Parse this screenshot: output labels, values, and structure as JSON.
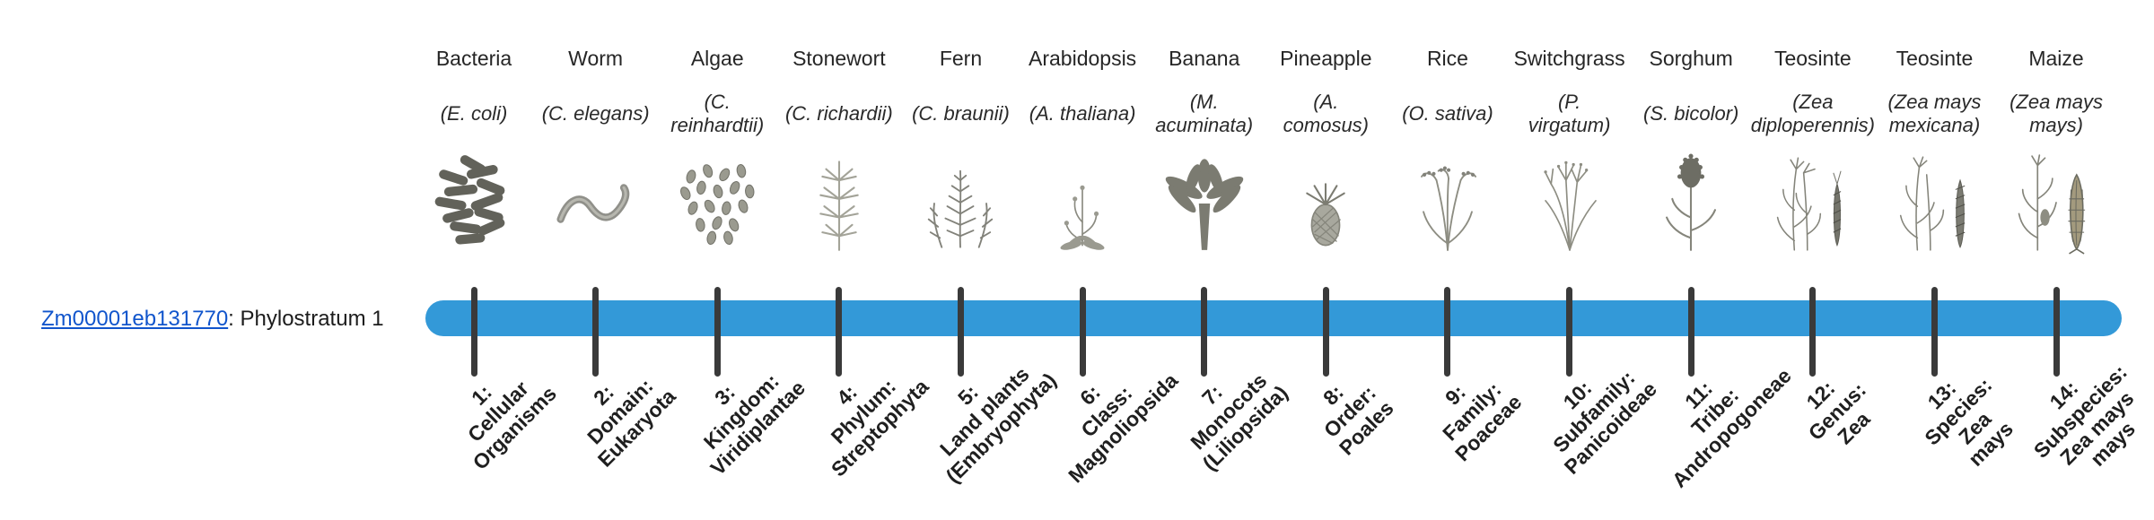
{
  "page": {
    "gene_link": "Zm00001eb131770",
    "gene_suffix": ": Phylostratum 1",
    "link_color": "#1155cc"
  },
  "timeline": {
    "bar_color": "#3399d8",
    "tick_color": "#3a3a3a"
  },
  "organisms": [
    {
      "name": "Bacteria",
      "sci_lines": [
        "(E. coli)"
      ],
      "icon": "bacteria-icon",
      "stratum_lines": [
        "1:",
        "Cellular",
        "Organisms"
      ]
    },
    {
      "name": "Worm",
      "sci_lines": [
        "(C. elegans)"
      ],
      "icon": "worm-icon",
      "stratum_lines": [
        "2:",
        "Domain:",
        "Eukaryota"
      ]
    },
    {
      "name": "Algae",
      "sci_lines": [
        "(C.",
        "reinhardtii)"
      ],
      "icon": "algae-icon",
      "stratum_lines": [
        "3:",
        "Kingdom:",
        "Viridiplantae"
      ]
    },
    {
      "name": "Stonewort",
      "sci_lines": [
        "(C. richardii)"
      ],
      "icon": "stonewort-icon",
      "stratum_lines": [
        "4:",
        "Phylum:",
        "Streptophyta"
      ]
    },
    {
      "name": "Fern",
      "sci_lines": [
        "(C. braunii)"
      ],
      "icon": "fern-icon",
      "stratum_lines": [
        "5:",
        "Land plants",
        "(Embryophyta)"
      ]
    },
    {
      "name": "Arabidopsis",
      "sci_lines": [
        "(A. thaliana)"
      ],
      "icon": "arabidopsis-icon",
      "stratum_lines": [
        "6:",
        "Class:",
        "Magnoliopsida"
      ]
    },
    {
      "name": "Banana",
      "sci_lines": [
        "(M.",
        "acuminata)"
      ],
      "icon": "banana-icon",
      "stratum_lines": [
        "7:",
        "Monocots",
        "(Liliopsida)"
      ]
    },
    {
      "name": "Pineapple",
      "sci_lines": [
        "(A.",
        "comosus)"
      ],
      "icon": "pineapple-icon",
      "stratum_lines": [
        "8:",
        "Order:",
        "Poales"
      ]
    },
    {
      "name": "Rice",
      "sci_lines": [
        "(O. sativa)"
      ],
      "icon": "rice-icon",
      "stratum_lines": [
        "9:",
        "Family:",
        "Poaceae"
      ]
    },
    {
      "name": "Switchgrass",
      "sci_lines": [
        "(P.",
        "virgatum)"
      ],
      "icon": "switchgrass-icon",
      "stratum_lines": [
        "10:",
        "Subfamily:",
        "Panicoideae"
      ]
    },
    {
      "name": "Sorghum",
      "sci_lines": [
        "(S. bicolor)"
      ],
      "icon": "sorghum-icon",
      "stratum_lines": [
        "11:",
        "Tribe:",
        "Andropogoneae"
      ]
    },
    {
      "name": "Teosinte",
      "sci_lines": [
        "(Zea",
        "diploperennis)"
      ],
      "icon": "teosinte-diploperennis-icon",
      "stratum_lines": [
        "12:",
        "Genus:",
        "Zea"
      ]
    },
    {
      "name": "Teosinte",
      "sci_lines": [
        "(Zea mays",
        "mexicana)"
      ],
      "icon": "teosinte-mexicana-icon",
      "stratum_lines": [
        "13:",
        "Species:",
        "Zea",
        "mays"
      ]
    },
    {
      "name": "Maize",
      "sci_lines": [
        "(Zea mays",
        "mays)"
      ],
      "icon": "maize-icon",
      "stratum_lines": [
        "14:",
        "Subspecies:",
        "Zea mays",
        "mays"
      ]
    }
  ]
}
